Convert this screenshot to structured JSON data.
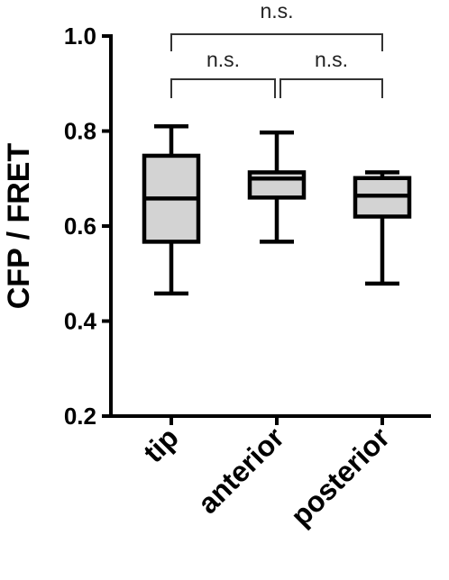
{
  "chart_data": {
    "type": "box",
    "ylabel": "CFP / FRET",
    "xlabel": "",
    "title": "",
    "ylim": [
      0.2,
      1.0
    ],
    "yticks": [
      "0.2",
      "0.4",
      "0.6",
      "0.8",
      "1.0"
    ],
    "categories": [
      "tip",
      "anterior",
      "posterior"
    ],
    "boxes": [
      {
        "category": "tip",
        "min": 0.458,
        "q1": 0.567,
        "median": 0.658,
        "q3": 0.748,
        "max": 0.81
      },
      {
        "category": "anterior",
        "min": 0.567,
        "q1": 0.66,
        "median": 0.7,
        "q3": 0.713,
        "max": 0.797
      },
      {
        "category": "posterior",
        "min": 0.479,
        "q1": 0.62,
        "median": 0.664,
        "q3": 0.701,
        "max": 0.713
      }
    ],
    "significance": [
      {
        "from": "tip",
        "to": "posterior",
        "label": "n.s."
      },
      {
        "from": "tip",
        "to": "anterior",
        "label": "n.s."
      },
      {
        "from": "anterior",
        "to": "posterior",
        "label": "n.s."
      }
    ],
    "colors": {
      "box_fill": "#d3d3d3",
      "stroke": "#000000"
    }
  }
}
